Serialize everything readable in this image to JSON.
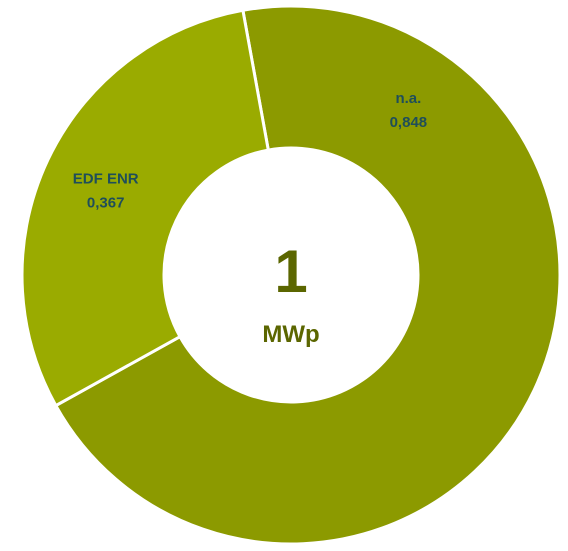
{
  "chart_data": {
    "type": "pie",
    "variant": "donut",
    "categories": [
      "n.a.",
      "EDF ENR"
    ],
    "values": [
      0.848,
      0.367
    ],
    "value_labels": [
      "0,848",
      "0,367"
    ],
    "colors": [
      "#8c9a00",
      "#9aab00"
    ],
    "label_color": "#1f4e5a",
    "center": {
      "value": "1",
      "unit": "MWp",
      "color": "#5b6600"
    },
    "start_angle_deg": -100.3,
    "direction": "clockwise",
    "legend": "none"
  }
}
